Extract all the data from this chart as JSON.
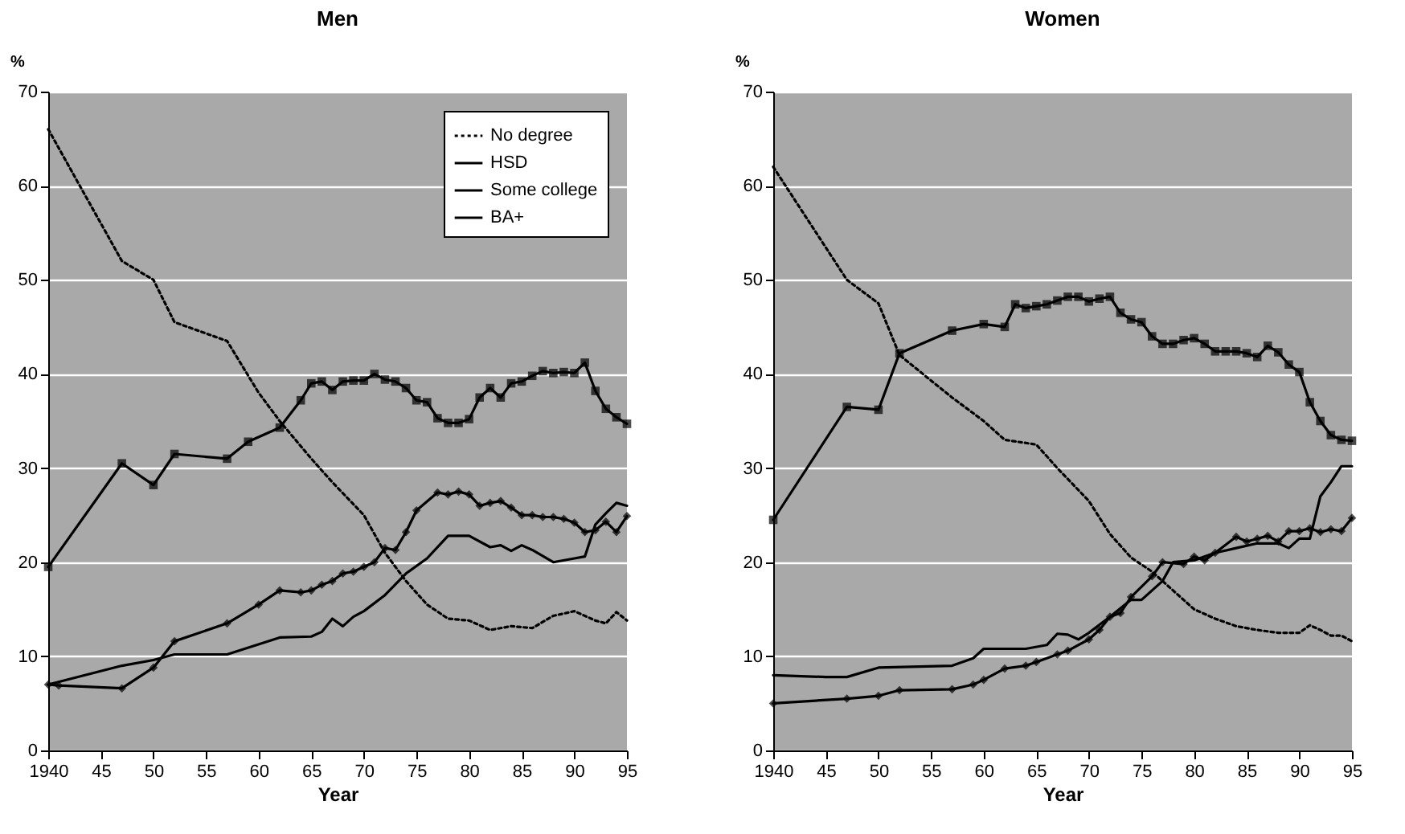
{
  "chart_data": [
    {
      "type": "line",
      "title": "Men",
      "xlabel": "Year",
      "ylabel": "%",
      "xlim": [
        1940,
        1995
      ],
      "ylim": [
        0,
        70
      ],
      "xticks": [
        1940,
        {
          "value": 1945,
          "label": "45"
        },
        {
          "value": 1950,
          "label": "50"
        },
        {
          "value": 1955,
          "label": "55"
        },
        {
          "value": 1960,
          "label": "60"
        },
        {
          "value": 1965,
          "label": "65"
        },
        {
          "value": 1970,
          "label": "70"
        },
        {
          "value": 1975,
          "label": "75"
        },
        {
          "value": 1980,
          "label": "80"
        },
        {
          "value": 1985,
          "label": "85"
        },
        {
          "value": 1990,
          "label": "90"
        },
        {
          "value": 1995,
          "label": "95"
        }
      ],
      "yticks": [
        0,
        10,
        20,
        30,
        40,
        50,
        60,
        70
      ],
      "grid": "y",
      "legend": "top right",
      "series": [
        {
          "name": "No degree",
          "color": "#000000",
          "line_style": "dotted",
          "marker": "none",
          "x": [
            1940,
            1947,
            1950,
            1952,
            1957,
            1960,
            1962,
            1965,
            1967,
            1970,
            1972,
            1974,
            1976,
            1978,
            1980,
            1982,
            1984,
            1986,
            1988,
            1990,
            1992,
            1993,
            1994,
            1995
          ],
          "values": [
            66,
            52,
            50,
            45.5,
            43.5,
            38,
            35,
            31,
            28.5,
            25,
            21,
            18,
            15.5,
            14,
            13.8,
            12.8,
            13.2,
            13,
            14.3,
            14.8,
            13.8,
            13.5,
            14.7,
            13.8
          ]
        },
        {
          "name": "HSD",
          "color": "#000000",
          "line_style": "solid",
          "marker": "square",
          "x": [
            1940,
            1947,
            1950,
            1952,
            1957,
            1959,
            1962,
            1964,
            1965,
            1966,
            1967,
            1968,
            1969,
            1970,
            1971,
            1972,
            1973,
            1974,
            1975,
            1976,
            1977,
            1978,
            1979,
            1980,
            1981,
            1982,
            1983,
            1984,
            1985,
            1986,
            1987,
            1988,
            1989,
            1990,
            1991,
            1992,
            1993,
            1994,
            1995
          ],
          "values": [
            19.5,
            30.5,
            28.2,
            31.5,
            31,
            32.8,
            34.3,
            37.2,
            39,
            39.2,
            38.3,
            39.2,
            39.3,
            39.3,
            40,
            39.4,
            39.2,
            38.5,
            37.2,
            37,
            35.3,
            34.8,
            34.8,
            35.2,
            37.5,
            38.5,
            37.5,
            39,
            39.2,
            39.8,
            40.3,
            40.1,
            40.2,
            40.1,
            41.2,
            38.2,
            36.3,
            35.4,
            34.7
          ]
        },
        {
          "name": "Some college",
          "color": "#000000",
          "line_style": "solid",
          "marker": "none",
          "x": [
            1940,
            1947,
            1950,
            1952,
            1957,
            1962,
            1965,
            1966,
            1967,
            1968,
            1969,
            1970,
            1972,
            1974,
            1976,
            1978,
            1980,
            1982,
            1983,
            1984,
            1985,
            1986,
            1988,
            1990,
            1991,
            1992,
            1993,
            1994,
            1995
          ],
          "values": [
            7,
            9,
            9.6,
            10.2,
            10.2,
            12,
            12.1,
            12.6,
            14,
            13.2,
            14.2,
            14.8,
            16.5,
            18.8,
            20.4,
            22.8,
            22.8,
            21.6,
            21.8,
            21.2,
            21.8,
            21.3,
            20,
            20.4,
            20.6,
            24,
            25.2,
            26.3,
            26
          ]
        },
        {
          "name": "BA+",
          "color": "#000000",
          "line_style": "solid",
          "marker": "diamond",
          "x": [
            1940,
            1941,
            1947,
            1950,
            1952,
            1957,
            1960,
            1962,
            1964,
            1965,
            1966,
            1967,
            1968,
            1969,
            1970,
            1971,
            1972,
            1973,
            1974,
            1975,
            1977,
            1978,
            1979,
            1980,
            1981,
            1982,
            1983,
            1984,
            1985,
            1986,
            1987,
            1988,
            1989,
            1990,
            1991,
            1992,
            1993,
            1994,
            1995
          ],
          "values": [
            7,
            6.9,
            6.6,
            8.8,
            11.6,
            13.5,
            15.5,
            17,
            16.8,
            17,
            17.6,
            18,
            18.8,
            19,
            19.5,
            20,
            21.5,
            21.3,
            23.2,
            25.5,
            27.4,
            27.2,
            27.5,
            27.2,
            26,
            26.3,
            26.5,
            25.8,
            25,
            25,
            24.8,
            24.8,
            24.6,
            24.2,
            23.2,
            23.4,
            24.3,
            23.2,
            24.9
          ]
        }
      ]
    },
    {
      "type": "line",
      "title": "Women",
      "xlabel": "Year",
      "ylabel": "%",
      "xlim": [
        1940,
        1995
      ],
      "ylim": [
        0,
        70
      ],
      "xticks": [
        1940,
        {
          "value": 1945,
          "label": "45"
        },
        {
          "value": 1950,
          "label": "50"
        },
        {
          "value": 1955,
          "label": "55"
        },
        {
          "value": 1960,
          "label": "60"
        },
        {
          "value": 1965,
          "label": "65"
        },
        {
          "value": 1970,
          "label": "70"
        },
        {
          "value": 1975,
          "label": "75"
        },
        {
          "value": 1980,
          "label": "80"
        },
        {
          "value": 1985,
          "label": "85"
        },
        {
          "value": 1990,
          "label": "90"
        },
        {
          "value": 1995,
          "label": "95"
        }
      ],
      "yticks": [
        0,
        10,
        20,
        30,
        40,
        50,
        60,
        70
      ],
      "grid": "y",
      "series": [
        {
          "color": "#000000",
          "line_style": "dotted",
          "marker": "none",
          "x": [
            1940,
            1947,
            1950,
            1952,
            1957,
            1960,
            1962,
            1965,
            1967,
            1970,
            1972,
            1974,
            1976,
            1978,
            1980,
            1982,
            1984,
            1986,
            1988,
            1990,
            1991,
            1992,
            1993,
            1994,
            1995
          ],
          "values": [
            62,
            50,
            47.5,
            42,
            37.5,
            35,
            33,
            32.5,
            30,
            26.5,
            23,
            20.5,
            19,
            17,
            15,
            14,
            13.2,
            12.8,
            12.5,
            12.5,
            13.3,
            12.8,
            12.2,
            12.2,
            11.6
          ]
        },
        {
          "color": "#000000",
          "line_style": "solid",
          "marker": "square",
          "x": [
            1940,
            1947,
            1950,
            1952,
            1957,
            1960,
            1962,
            1963,
            1964,
            1965,
            1966,
            1967,
            1968,
            1969,
            1970,
            1971,
            1972,
            1973,
            1974,
            1975,
            1976,
            1977,
            1978,
            1979,
            1980,
            1981,
            1982,
            1983,
            1984,
            1985,
            1986,
            1987,
            1988,
            1989,
            1990,
            1991,
            1992,
            1993,
            1994,
            1995
          ],
          "values": [
            24.5,
            36.5,
            36.2,
            42.2,
            44.6,
            45.3,
            45,
            47.4,
            47,
            47.2,
            47.4,
            47.8,
            48.2,
            48.2,
            47.7,
            48,
            48.2,
            46.5,
            45.8,
            45.5,
            44,
            43.2,
            43.2,
            43.6,
            43.8,
            43.2,
            42.4,
            42.4,
            42.4,
            42.2,
            41.8,
            43,
            42.3,
            41,
            40.2,
            37,
            35,
            33.5,
            33,
            32.9
          ]
        },
        {
          "color": "#000000",
          "line_style": "solid",
          "marker": "none",
          "x": [
            1940,
            1945,
            1947,
            1950,
            1957,
            1959,
            1960,
            1964,
            1966,
            1967,
            1968,
            1969,
            1970,
            1972,
            1974,
            1975,
            1977,
            1978,
            1980,
            1982,
            1984,
            1986,
            1988,
            1989,
            1990,
            1991,
            1992,
            1993,
            1994,
            1995
          ],
          "values": [
            8,
            7.8,
            7.8,
            8.8,
            9,
            9.8,
            10.8,
            10.8,
            11.2,
            12.4,
            12.3,
            11.8,
            12.5,
            14.2,
            16,
            16,
            18,
            20,
            20.2,
            21,
            21.5,
            22,
            22,
            21.5,
            22.5,
            22.5,
            27,
            28.5,
            30.2,
            30.2
          ]
        },
        {
          "color": "#000000",
          "line_style": "solid",
          "marker": "diamond",
          "x": [
            1940,
            1947,
            1950,
            1952,
            1957,
            1959,
            1960,
            1962,
            1964,
            1965,
            1967,
            1968,
            1970,
            1971,
            1972,
            1973,
            1974,
            1976,
            1977,
            1979,
            1980,
            1981,
            1982,
            1984,
            1985,
            1986,
            1987,
            1988,
            1989,
            1990,
            1991,
            1992,
            1993,
            1994,
            1995
          ],
          "values": [
            5,
            5.5,
            5.8,
            6.4,
            6.5,
            7,
            7.5,
            8.7,
            9,
            9.4,
            10.2,
            10.6,
            11.8,
            12.8,
            14.2,
            14.6,
            16.3,
            18.5,
            20,
            19.8,
            20.6,
            20.2,
            21,
            22.7,
            22.2,
            22.5,
            22.8,
            22.2,
            23.3,
            23.3,
            23.6,
            23.2,
            23.5,
            23.3,
            24.7
          ]
        }
      ]
    }
  ]
}
